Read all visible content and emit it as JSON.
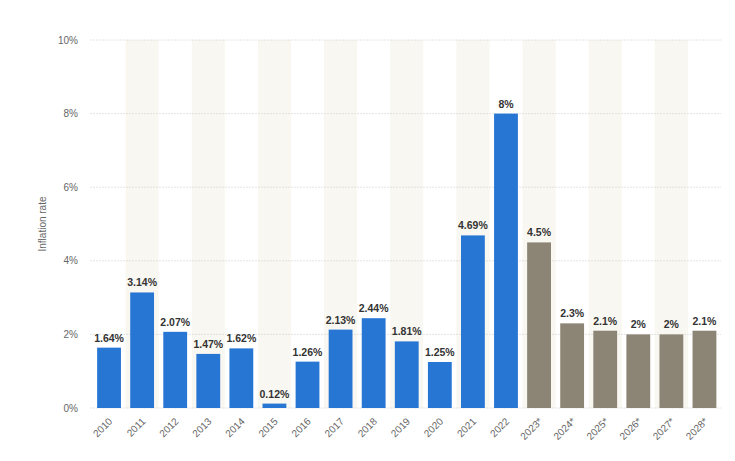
{
  "chart_data": {
    "type": "bar",
    "y_label": "Inflation rate",
    "categories": [
      "2010",
      "2011",
      "2012",
      "2013",
      "2014",
      "2015",
      "2016",
      "2017",
      "2018",
      "2019",
      "2020",
      "2021",
      "2022",
      "2023*",
      "2024*",
      "2025*",
      "2026*",
      "2027*",
      "2028*"
    ],
    "values": [
      1.64,
      3.14,
      2.07,
      1.47,
      1.62,
      0.12,
      1.26,
      2.13,
      2.44,
      1.81,
      1.25,
      4.69,
      8,
      4.5,
      2.3,
      2.1,
      2,
      2,
      2.1
    ],
    "value_labels": [
      "1.64%",
      "3.14%",
      "2.07%",
      "1.47%",
      "1.62%",
      "0.12%",
      "1.26%",
      "2.13%",
      "2.44%",
      "1.81%",
      "1.25%",
      "4.69%",
      "8%",
      "4.5%",
      "2.3%",
      "2.1%",
      "2%",
      "2%",
      "2.1%"
    ],
    "colors": [
      "#2876d4",
      "#2876d4",
      "#2876d4",
      "#2876d4",
      "#2876d4",
      "#2876d4",
      "#2876d4",
      "#2876d4",
      "#2876d4",
      "#2876d4",
      "#2876d4",
      "#2876d4",
      "#2876d4",
      "#8c8474",
      "#8c8474",
      "#8c8474",
      "#8c8474",
      "#8c8474",
      "#8c8474"
    ],
    "ylim": [
      0,
      10
    ],
    "yticks": [
      {
        "value": 0,
        "label": "0%"
      },
      {
        "value": 2,
        "label": "2%"
      },
      {
        "value": 4,
        "label": "4%"
      },
      {
        "value": 6,
        "label": "6%"
      },
      {
        "value": 8,
        "label": "8%"
      },
      {
        "value": 10,
        "label": "10%"
      }
    ],
    "grid": true,
    "data_labels": true
  }
}
